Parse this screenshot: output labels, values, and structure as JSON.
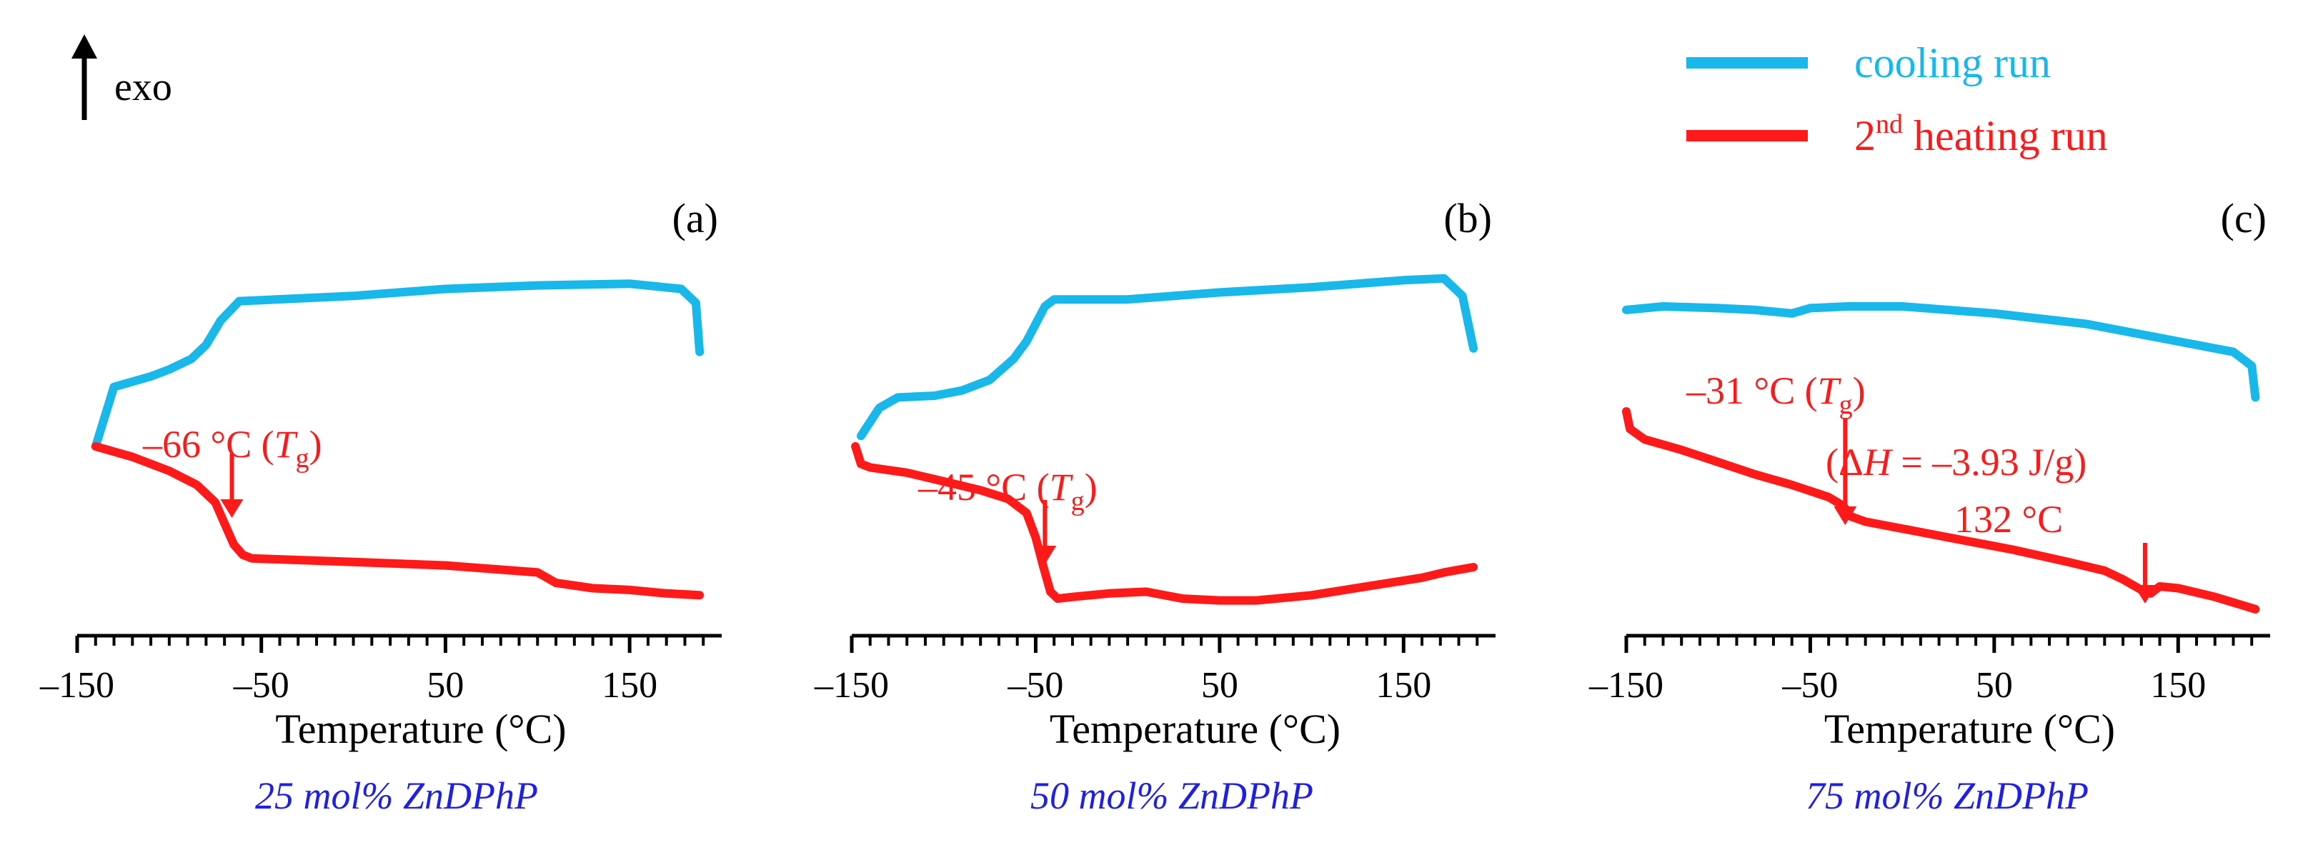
{
  "header": {
    "exo_label": "exo"
  },
  "legend": {
    "items": [
      {
        "label": "cooling run",
        "color": "#19b8ea"
      },
      {
        "label": "2nd heating run",
        "label_base": "2",
        "label_sup": "nd",
        "label_rest": " heating run",
        "color": "#ff1a1a"
      }
    ]
  },
  "chart_data": [
    {
      "type": "line",
      "panel_label": "(a)",
      "caption": "25 mol% ZnDPhP",
      "xlabel": "Temperature (°C)",
      "ylabel": "",
      "xlim": [
        -150,
        200
      ],
      "ylim": [
        0,
        1
      ],
      "xticks": [
        -150,
        -50,
        50,
        150
      ],
      "xtick_labels": [
        "–150",
        "–50",
        "50",
        "150"
      ],
      "series": [
        {
          "name": "cooling run",
          "color": "#19b8ea",
          "x": [
            -140,
            -130,
            -110,
            -100,
            -88,
            -80,
            -72,
            -62,
            0,
            50,
            100,
            150,
            178,
            186,
            188
          ],
          "y": [
            0.5,
            0.67,
            0.7,
            0.72,
            0.75,
            0.79,
            0.86,
            0.915,
            0.93,
            0.95,
            0.96,
            0.965,
            0.95,
            0.91,
            0.77
          ]
        },
        {
          "name": "2nd heating run",
          "color": "#ff1a1a",
          "x": [
            -140,
            -120,
            -100,
            -85,
            -75,
            -70,
            -65,
            -60,
            -55,
            0,
            50,
            100,
            110,
            130,
            150,
            170,
            188
          ],
          "y": [
            0.5,
            0.47,
            0.43,
            0.39,
            0.34,
            0.28,
            0.22,
            0.19,
            0.18,
            0.17,
            0.16,
            0.14,
            0.11,
            0.095,
            0.09,
            0.08,
            0.075
          ]
        }
      ],
      "annotations": [
        {
          "text": "–66 °C (",
          "italic": "T",
          "sub": "g",
          "close": ")",
          "x": -66
        }
      ]
    },
    {
      "type": "line",
      "panel_label": "(b)",
      "caption": "50 mol% ZnDPhP",
      "xlabel": "Temperature (°C)",
      "ylabel": "",
      "xlim": [
        -150,
        200
      ],
      "ylim": [
        0,
        1
      ],
      "xticks": [
        -150,
        -50,
        50,
        150
      ],
      "xtick_labels": [
        "–150",
        "–50",
        "50",
        "150"
      ],
      "series": [
        {
          "name": "cooling run",
          "color": "#19b8ea",
          "x": [
            -145,
            -135,
            -125,
            -105,
            -90,
            -75,
            -62,
            -55,
            -45,
            -40,
            0,
            50,
            100,
            150,
            172,
            182,
            188
          ],
          "y": [
            0.53,
            0.61,
            0.64,
            0.645,
            0.66,
            0.69,
            0.75,
            0.8,
            0.9,
            0.92,
            0.92,
            0.94,
            0.955,
            0.975,
            0.98,
            0.93,
            0.78
          ]
        },
        {
          "name": "2nd heating run",
          "color": "#ff1a1a",
          "x": [
            -148,
            -145,
            -140,
            -120,
            -100,
            -80,
            -65,
            -55,
            -50,
            -46,
            -42,
            -38,
            -30,
            -10,
            10,
            30,
            50,
            70,
            100,
            130,
            160,
            172,
            188
          ],
          "y": [
            0.5,
            0.45,
            0.44,
            0.425,
            0.4,
            0.375,
            0.35,
            0.31,
            0.24,
            0.16,
            0.085,
            0.065,
            0.07,
            0.08,
            0.085,
            0.065,
            0.06,
            0.06,
            0.075,
            0.1,
            0.125,
            0.14,
            0.155
          ]
        }
      ],
      "annotations": [
        {
          "text": "–45 °C (",
          "italic": "T",
          "sub": "g",
          "close": ")",
          "x": -45
        }
      ]
    },
    {
      "type": "line",
      "panel_label": "(c)",
      "caption": "75 mol% ZnDPhP",
      "xlabel": "Temperature (°C)",
      "ylabel": "",
      "xlim": [
        -150,
        200
      ],
      "ylim": [
        0,
        1
      ],
      "xticks": [
        -150,
        -50,
        50,
        150
      ],
      "xtick_labels": [
        "–150",
        "–50",
        "50",
        "150"
      ],
      "series": [
        {
          "name": "cooling run",
          "color": "#19b8ea",
          "x": [
            -150,
            -130,
            -100,
            -80,
            -60,
            -50,
            -30,
            0,
            50,
            100,
            150,
            180,
            190,
            192
          ],
          "y": [
            0.89,
            0.9,
            0.895,
            0.89,
            0.88,
            0.895,
            0.9,
            0.9,
            0.88,
            0.85,
            0.8,
            0.77,
            0.73,
            0.64
          ]
        },
        {
          "name": "2nd heating run",
          "color": "#ff1a1a",
          "x": [
            -150,
            -148,
            -140,
            -120,
            -100,
            -80,
            -60,
            -40,
            -32,
            -28,
            -20,
            0,
            30,
            60,
            90,
            110,
            120,
            130,
            135,
            140,
            150,
            170,
            192
          ],
          "y": [
            0.6,
            0.55,
            0.52,
            0.49,
            0.455,
            0.42,
            0.39,
            0.355,
            0.33,
            0.3,
            0.285,
            0.265,
            0.235,
            0.205,
            0.17,
            0.145,
            0.12,
            0.09,
            0.08,
            0.1,
            0.095,
            0.07,
            0.035
          ]
        }
      ],
      "annotations": [
        {
          "text": "–31 °C (",
          "italic": "T",
          "sub": "g",
          "close": ")",
          "x": -31
        },
        {
          "text": "(Δ",
          "italic": "H",
          "close": " = –3.93 J/g)",
          "x": 132,
          "role": "enthalpy"
        },
        {
          "text": "132 °C",
          "x": 132,
          "role": "peak"
        }
      ]
    }
  ]
}
